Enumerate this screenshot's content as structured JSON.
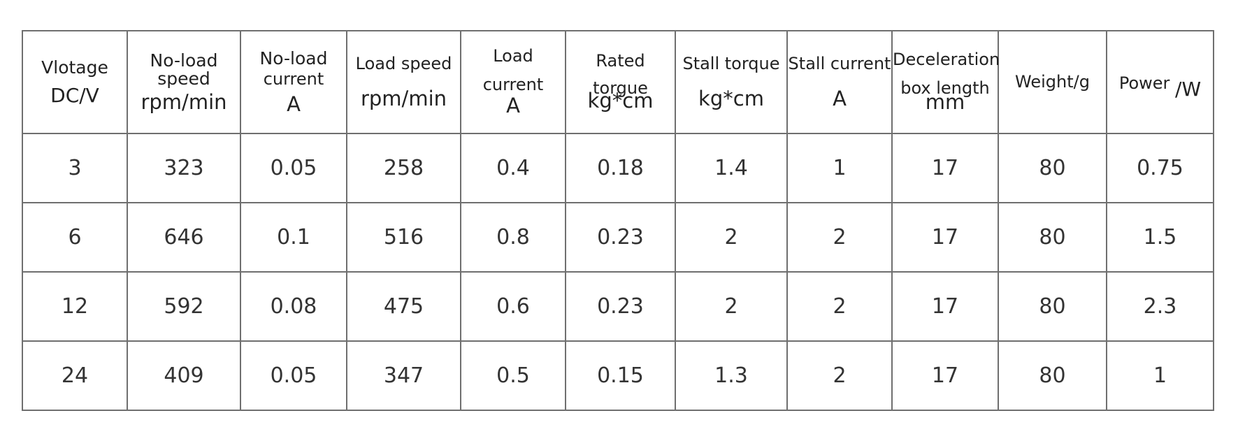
{
  "table": {
    "headers": [
      {
        "lines": [
          "Vlotage",
          "DC/V"
        ]
      },
      {
        "lines": [
          "No-load",
          "speed",
          "rpm/min"
        ]
      },
      {
        "lines": [
          "No-load",
          "current",
          "A"
        ]
      },
      {
        "lines": [
          "Load speed",
          "rpm/min"
        ]
      },
      {
        "lines": [
          "Load",
          "current",
          "A"
        ]
      },
      {
        "lines": [
          "Rated",
          "torgue",
          "kg*cm"
        ]
      },
      {
        "lines": [
          "Stall torque",
          "kg*cm"
        ]
      },
      {
        "lines": [
          "Stall current",
          "A"
        ]
      },
      {
        "lines": [
          "Deceleration",
          "box length",
          "mm"
        ]
      },
      {
        "lines": [
          "Weight/g"
        ]
      },
      {
        "name": "Power",
        "unit": "/W"
      }
    ],
    "rows": [
      [
        "3",
        "323",
        "0.05",
        "258",
        "0.4",
        "0.18",
        "1.4",
        "1",
        "17",
        "80",
        "0.75"
      ],
      [
        "6",
        "646",
        "0.1",
        "516",
        "0.8",
        "0.23",
        "2",
        "2",
        "17",
        "80",
        "1.5"
      ],
      [
        "12",
        "592",
        "0.08",
        "475",
        "0.6",
        "0.23",
        "2",
        "2",
        "17",
        "80",
        "2.3"
      ],
      [
        "24",
        "409",
        "0.05",
        "347",
        "0.5",
        "0.15",
        "1.3",
        "2",
        "17",
        "80",
        "1"
      ]
    ]
  }
}
